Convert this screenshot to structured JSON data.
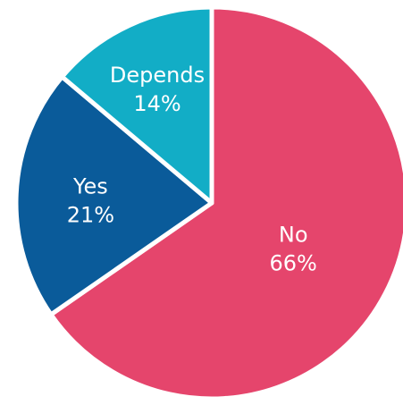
{
  "chart_data": {
    "type": "pie",
    "start": "top",
    "direction": "clockwise",
    "slices": [
      {
        "label": "No",
        "value": 66,
        "value_label": "66%",
        "color": "#e5456c"
      },
      {
        "label": "Yes",
        "value": 21,
        "value_label": "21%",
        "color": "#0a5b9a"
      },
      {
        "label": "Depends",
        "value": 14,
        "value_label": "14%",
        "color": "#12adc6"
      }
    ]
  }
}
